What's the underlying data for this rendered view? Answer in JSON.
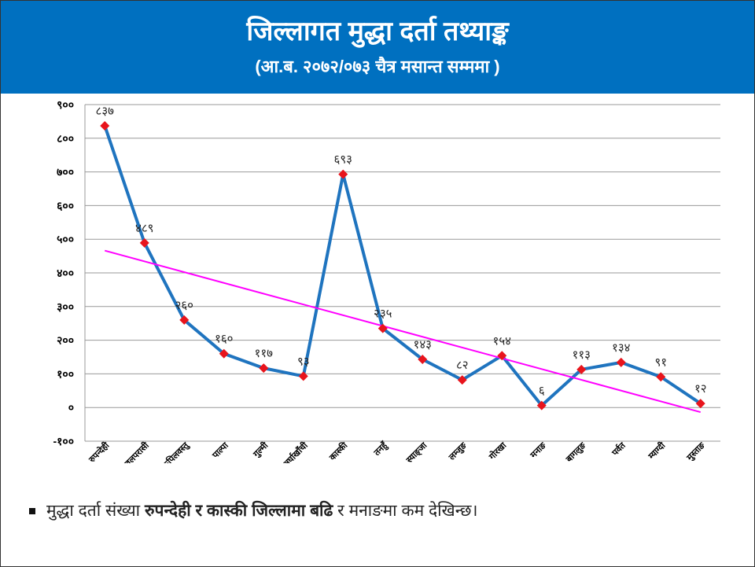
{
  "header": {
    "title": "जिल्लागत मुद्धा दर्ता तथ्याङ्क",
    "subtitle": "(आ.ब. २०७२/०७३ चैत्र मसान्त सम्ममा )"
  },
  "chart_data": {
    "type": "line",
    "categories": [
      "रुपन्देही",
      "नवलपरासी",
      "कपिलवस्तु",
      "पाल्पा",
      "गुल्मी",
      "अर्घाखाँची",
      "कास्की",
      "तनहुँ",
      "स्याङ्जा",
      "लम्जुङ",
      "गोरखा",
      "मनाङ",
      "बागलुङ",
      "पर्वत",
      "म्याग्दी",
      "मुस्ताङ"
    ],
    "values": [
      837,
      489,
      260,
      160,
      117,
      93,
      693,
      235,
      143,
      82,
      154,
      6,
      113,
      134,
      91,
      12
    ],
    "value_labels": [
      "८३७",
      "४८९",
      "२६०",
      "१६०",
      "११७",
      "९३",
      "६९३",
      "२३५",
      "१४३",
      "८२",
      "१५४",
      "६",
      "११३",
      "१३४",
      "९१",
      "१२"
    ],
    "color": "#1f74bf",
    "marker_color": "#e8141c",
    "trendline": true,
    "trendline_color": "#ff00ff",
    "ylim": [
      -100,
      900
    ],
    "yticks": [
      {
        "value": -100,
        "label": "-१००"
      },
      {
        "value": 0,
        "label": "०"
      },
      {
        "value": 100,
        "label": "१००"
      },
      {
        "value": 200,
        "label": "२००"
      },
      {
        "value": 300,
        "label": "३००"
      },
      {
        "value": 400,
        "label": "४००"
      },
      {
        "value": 500,
        "label": "५००"
      },
      {
        "value": 600,
        "label": "६००"
      },
      {
        "value": 700,
        "label": "७००"
      },
      {
        "value": 800,
        "label": "८००"
      },
      {
        "value": 900,
        "label": "९००"
      }
    ],
    "grid": true
  },
  "note": {
    "parts": [
      {
        "text": "मुद्धा दर्ता संख्या ",
        "bold": false
      },
      {
        "text": "रुपन्देही र कास्की जिल्लामा बढि",
        "bold": true
      },
      {
        "text": " र मनाङमा कम देखिन्छ।",
        "bold": false
      }
    ]
  }
}
